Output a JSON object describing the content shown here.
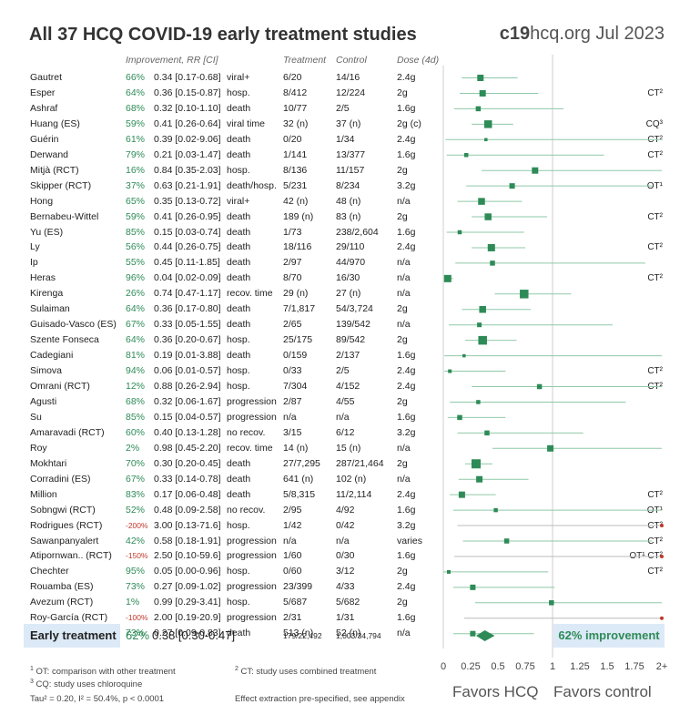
{
  "title": "All 37 HCQ COVID-19 early treatment studies",
  "source": {
    "bold": "c19",
    "rest": "hcq.org Jul 2023"
  },
  "headers": {
    "improvement": "Improvement, RR [CI]",
    "treatment": "Treatment",
    "control": "Control",
    "dose": "Dose (4d)"
  },
  "colors": {
    "accent": "#2e8b57",
    "negative": "#c0392b",
    "highlight": "#dce9f7"
  },
  "chart_data": {
    "type": "forest",
    "x_ticks": [
      "0",
      "0.25",
      "0.5",
      "0.75",
      "1",
      "1.25",
      "1.5",
      "1.75",
      "2+"
    ],
    "xlim": [
      0,
      2
    ],
    "studies": [
      {
        "name": "Gautret",
        "imp": "66%",
        "rr": 0.34,
        "lo": 0.17,
        "hi": 0.68,
        "rr_text": "0.34 [0.17-0.68]",
        "outcome": "viral+",
        "trt": "6/20",
        "ctl": "14/16",
        "dose": "2.4g",
        "tag": "",
        "w": 1.0
      },
      {
        "name": "Esper",
        "imp": "64%",
        "rr": 0.36,
        "lo": 0.15,
        "hi": 0.87,
        "rr_text": "0.36 [0.15-0.87]",
        "outcome": "hosp.",
        "trt": "8/412",
        "ctl": "12/224",
        "dose": "2g",
        "tag": "CT²",
        "w": 1.0
      },
      {
        "name": "Ashraf",
        "imp": "68%",
        "rr": 0.32,
        "lo": 0.1,
        "hi": 1.1,
        "rr_text": "0.32 [0.10-1.10]",
        "outcome": "death",
        "trt": "10/77",
        "ctl": "2/5",
        "dose": "1.6g",
        "tag": "",
        "w": 0.7
      },
      {
        "name": "Huang (ES)",
        "imp": "59%",
        "rr": 0.41,
        "lo": 0.26,
        "hi": 0.64,
        "rr_text": "0.41 [0.26-0.64]",
        "outcome": "viral time",
        "trt": "32 (n)",
        "ctl": "37 (n)",
        "dose": "2g (c)",
        "tag": "CQ³",
        "w": 1.3
      },
      {
        "name": "Guérin",
        "imp": "61%",
        "rr": 0.39,
        "lo": 0.02,
        "hi": 9.06,
        "rr_text": "0.39 [0.02-9.06]",
        "outcome": "death",
        "trt": "0/20",
        "ctl": "1/34",
        "dose": "2.4g",
        "tag": "CT²",
        "w": 0.3
      },
      {
        "name": "Derwand",
        "imp": "79%",
        "rr": 0.21,
        "lo": 0.03,
        "hi": 1.47,
        "rr_text": "0.21 [0.03-1.47]",
        "outcome": "death",
        "trt": "1/141",
        "ctl": "13/377",
        "dose": "1.6g",
        "tag": "CT²",
        "w": 0.5
      },
      {
        "name": "Mitjà (RCT)",
        "imp": "16%",
        "rr": 0.84,
        "lo": 0.35,
        "hi": 2.03,
        "rr_text": "0.84 [0.35-2.03]",
        "outcome": "hosp.",
        "trt": "8/136",
        "ctl": "11/157",
        "dose": "2g",
        "tag": "",
        "w": 1.0
      },
      {
        "name": "Skipper (RCT)",
        "imp": "37%",
        "rr": 0.63,
        "lo": 0.21,
        "hi": 1.91,
        "rr_text": "0.63 [0.21-1.91]",
        "outcome": "death/hosp.",
        "trt": "5/231",
        "ctl": "8/234",
        "dose": "3.2g",
        "tag": "OT¹",
        "w": 0.8
      },
      {
        "name": "Hong",
        "imp": "65%",
        "rr": 0.35,
        "lo": 0.13,
        "hi": 0.72,
        "rr_text": "0.35 [0.13-0.72]",
        "outcome": "viral+",
        "trt": "42 (n)",
        "ctl": "48 (n)",
        "dose": "n/a",
        "tag": "",
        "w": 1.1
      },
      {
        "name": "Bernabeu-Wittel",
        "imp": "59%",
        "rr": 0.41,
        "lo": 0.26,
        "hi": 0.95,
        "rr_text": "0.41 [0.26-0.95]",
        "outcome": "death",
        "trt": "189 (n)",
        "ctl": "83 (n)",
        "dose": "2g",
        "tag": "CT²",
        "w": 1.1
      },
      {
        "name": "Yu (ES)",
        "imp": "85%",
        "rr": 0.15,
        "lo": 0.03,
        "hi": 0.74,
        "rr_text": "0.15 [0.03-0.74]",
        "outcome": "death",
        "trt": "1/73",
        "ctl": "238/2,604",
        "dose": "1.6g",
        "tag": "",
        "w": 0.5
      },
      {
        "name": "Ly",
        "imp": "56%",
        "rr": 0.44,
        "lo": 0.26,
        "hi": 0.75,
        "rr_text": "0.44 [0.26-0.75]",
        "outcome": "death",
        "trt": "18/116",
        "ctl": "29/110",
        "dose": "2.4g",
        "tag": "CT²",
        "w": 1.2
      },
      {
        "name": "Ip",
        "imp": "55%",
        "rr": 0.45,
        "lo": 0.11,
        "hi": 1.85,
        "rr_text": "0.45 [0.11-1.85]",
        "outcome": "death",
        "trt": "2/97",
        "ctl": "44/970",
        "dose": "n/a",
        "tag": "",
        "w": 0.7
      },
      {
        "name": "Heras",
        "imp": "96%",
        "rr": 0.04,
        "lo": 0.02,
        "hi": 0.09,
        "rr_text": "0.04 [0.02-0.09]",
        "outcome": "death",
        "trt": "8/70",
        "ctl": "16/30",
        "dose": "n/a",
        "tag": "CT²",
        "w": 1.2
      },
      {
        "name": "Kirenga",
        "imp": "26%",
        "rr": 0.74,
        "lo": 0.47,
        "hi": 1.17,
        "rr_text": "0.74 [0.47-1.17]",
        "outcome": "recov. time",
        "trt": "29 (n)",
        "ctl": "27 (n)",
        "dose": "n/a",
        "tag": "",
        "w": 1.5
      },
      {
        "name": "Sulaiman",
        "imp": "64%",
        "rr": 0.36,
        "lo": 0.17,
        "hi": 0.8,
        "rr_text": "0.36 [0.17-0.80]",
        "outcome": "death",
        "trt": "7/1,817",
        "ctl": "54/3,724",
        "dose": "2g",
        "tag": "",
        "w": 1.1
      },
      {
        "name": "Guisado-Vasco (ES)",
        "imp": "67%",
        "rr": 0.33,
        "lo": 0.05,
        "hi": 1.55,
        "rr_text": "0.33 [0.05-1.55]",
        "outcome": "death",
        "trt": "2/65",
        "ctl": "139/542",
        "dose": "n/a",
        "tag": "",
        "w": 0.6
      },
      {
        "name": "Szente Fonseca",
        "imp": "64%",
        "rr": 0.36,
        "lo": 0.2,
        "hi": 0.67,
        "rr_text": "0.36 [0.20-0.67]",
        "outcome": "hosp.",
        "trt": "25/175",
        "ctl": "89/542",
        "dose": "2g",
        "tag": "",
        "w": 1.5
      },
      {
        "name": "Cadegiani",
        "imp": "81%",
        "rr": 0.19,
        "lo": 0.01,
        "hi": 3.88,
        "rr_text": "0.19 [0.01-3.88]",
        "outcome": "death",
        "trt": "0/159",
        "ctl": "2/137",
        "dose": "1.6g",
        "tag": "",
        "w": 0.3
      },
      {
        "name": "Simova",
        "imp": "94%",
        "rr": 0.06,
        "lo": 0.01,
        "hi": 0.57,
        "rr_text": "0.06 [0.01-0.57]",
        "outcome": "hosp.",
        "trt": "0/33",
        "ctl": "2/5",
        "dose": "2.4g",
        "tag": "CT²",
        "w": 0.4
      },
      {
        "name": "Omrani (RCT)",
        "imp": "12%",
        "rr": 0.88,
        "lo": 0.26,
        "hi": 2.94,
        "rr_text": "0.88 [0.26-2.94]",
        "outcome": "hosp.",
        "trt": "7/304",
        "ctl": "4/152",
        "dose": "2.4g",
        "tag": "CT²",
        "w": 0.7
      },
      {
        "name": "Agusti",
        "imp": "68%",
        "rr": 0.32,
        "lo": 0.06,
        "hi": 1.67,
        "rr_text": "0.32 [0.06-1.67]",
        "outcome": "progression",
        "trt": "2/87",
        "ctl": "4/55",
        "dose": "2g",
        "tag": "",
        "w": 0.5
      },
      {
        "name": "Su",
        "imp": "85%",
        "rr": 0.15,
        "lo": 0.04,
        "hi": 0.57,
        "rr_text": "0.15 [0.04-0.57]",
        "outcome": "progression",
        "trt": "n/a",
        "ctl": "n/a",
        "dose": "1.6g",
        "tag": "",
        "w": 0.7
      },
      {
        "name": "Amaravadi (RCT)",
        "imp": "60%",
        "rr": 0.4,
        "lo": 0.13,
        "hi": 1.28,
        "rr_text": "0.40 [0.13-1.28]",
        "outcome": "no recov.",
        "trt": "3/15",
        "ctl": "6/12",
        "dose": "3.2g",
        "tag": "",
        "w": 0.7
      },
      {
        "name": "Roy",
        "imp": "2%",
        "rr": 0.98,
        "lo": 0.45,
        "hi": 2.2,
        "rr_text": "0.98 [0.45-2.20]",
        "outcome": "recov. time",
        "trt": "14 (n)",
        "ctl": "15 (n)",
        "dose": "n/a",
        "tag": "",
        "w": 1.0
      },
      {
        "name": "Mokhtari",
        "imp": "70%",
        "rr": 0.3,
        "lo": 0.2,
        "hi": 0.45,
        "rr_text": "0.30 [0.20-0.45]",
        "outcome": "death",
        "trt": "27/7,295",
        "ctl": "287/21,464",
        "dose": "2g",
        "tag": "",
        "w": 1.6
      },
      {
        "name": "Corradini (ES)",
        "imp": "67%",
        "rr": 0.33,
        "lo": 0.14,
        "hi": 0.78,
        "rr_text": "0.33 [0.14-0.78]",
        "outcome": "death",
        "trt": "641 (n)",
        "ctl": "102 (n)",
        "dose": "n/a",
        "tag": "",
        "w": 1.0
      },
      {
        "name": "Million",
        "imp": "83%",
        "rr": 0.17,
        "lo": 0.06,
        "hi": 0.48,
        "rr_text": "0.17 [0.06-0.48]",
        "outcome": "death",
        "trt": "5/8,315",
        "ctl": "11/2,114",
        "dose": "2.4g",
        "tag": "CT²",
        "w": 1.0
      },
      {
        "name": "Sobngwi (RCT)",
        "imp": "52%",
        "rr": 0.48,
        "lo": 0.09,
        "hi": 2.58,
        "rr_text": "0.48 [0.09-2.58]",
        "outcome": "no recov.",
        "trt": "2/95",
        "ctl": "4/92",
        "dose": "1.6g",
        "tag": "OT¹",
        "w": 0.5
      },
      {
        "name": "Rodrigues (RCT)",
        "imp": "-200%",
        "rr": 3.0,
        "lo": 0.13,
        "hi": 71.6,
        "rr_text": "3.00 [0.13-71.6]",
        "outcome": "hosp.",
        "trt": "1/42",
        "ctl": "0/42",
        "dose": "3.2g",
        "tag": "CT²",
        "w": 0.4
      },
      {
        "name": "Sawanpanyalert",
        "imp": "42%",
        "rr": 0.58,
        "lo": 0.18,
        "hi": 1.91,
        "rr_text": "0.58 [0.18-1.91]",
        "outcome": "progression",
        "trt": "n/a",
        "ctl": "n/a",
        "dose": "varies",
        "tag": "CT²",
        "w": 0.7
      },
      {
        "name": "Atipornwan.. (RCT)",
        "imp": "-150%",
        "rr": 2.5,
        "lo": 0.1,
        "hi": 59.6,
        "rr_text": "2.50 [0.10-59.6]",
        "outcome": "progression",
        "trt": "1/60",
        "ctl": "0/30",
        "dose": "1.6g",
        "tag": "OT¹ CT²",
        "w": 0.4
      },
      {
        "name": "Chechter",
        "imp": "95%",
        "rr": 0.05,
        "lo": 0.0,
        "hi": 0.96,
        "rr_text": "0.05 [0.00-0.96]",
        "outcome": "hosp.",
        "trt": "0/60",
        "ctl": "3/12",
        "dose": "2g",
        "tag": "CT²",
        "w": 0.4
      },
      {
        "name": "Rouamba (ES)",
        "imp": "73%",
        "rr": 0.27,
        "lo": 0.09,
        "hi": 1.02,
        "rr_text": "0.27 [0.09-1.02]",
        "outcome": "progression",
        "trt": "23/399",
        "ctl": "4/33",
        "dose": "2.4g",
        "tag": "",
        "w": 0.8
      },
      {
        "name": "Avezum (RCT)",
        "imp": "1%",
        "rr": 0.99,
        "lo": 0.29,
        "hi": 3.41,
        "rr_text": "0.99 [0.29-3.41]",
        "outcome": "hosp.",
        "trt": "5/687",
        "ctl": "5/682",
        "dose": "2g",
        "tag": "",
        "w": 0.7
      },
      {
        "name": "Roy-García (RCT)",
        "imp": "-100%",
        "rr": 2.0,
        "lo": 0.19,
        "hi": 20.9,
        "rr_text": "2.00 [0.19-20.9]",
        "outcome": "progression",
        "trt": "2/31",
        "ctl": "1/31",
        "dose": "1.6g",
        "tag": "",
        "w": 0.5
      },
      {
        "name": "Rathod",
        "imp": "73%",
        "rr": 0.27,
        "lo": 0.09,
        "hi": 0.83,
        "rr_text": "0.27 [0.09-0.83]",
        "outcome": "death",
        "trt": "513 (n)",
        "ctl": "52 (n)",
        "dose": "n/a",
        "tag": "CT²",
        "w": 0.8
      }
    ],
    "summary": {
      "label": "Early treatment",
      "imp": "62%",
      "rr": 0.38,
      "lo": 0.3,
      "hi": 0.47,
      "rr_text": "0.38 [0.30-0.47]",
      "trt": "179/22,492",
      "ctl": "1,003/34,794",
      "improvement_text": "62% improvement"
    },
    "favors_left": "Favors HCQ",
    "favors_right": "Favors control"
  },
  "footnotes": {
    "ot": "OT: comparison with other treatment",
    "ct": "CT: study uses combined treatment",
    "cq": "CQ: study uses chloroquine",
    "stats": "Tau² = 0.20, I² = 50.4%, p < 0.0001",
    "effect": "Effect extraction pre-specified, see appendix"
  }
}
